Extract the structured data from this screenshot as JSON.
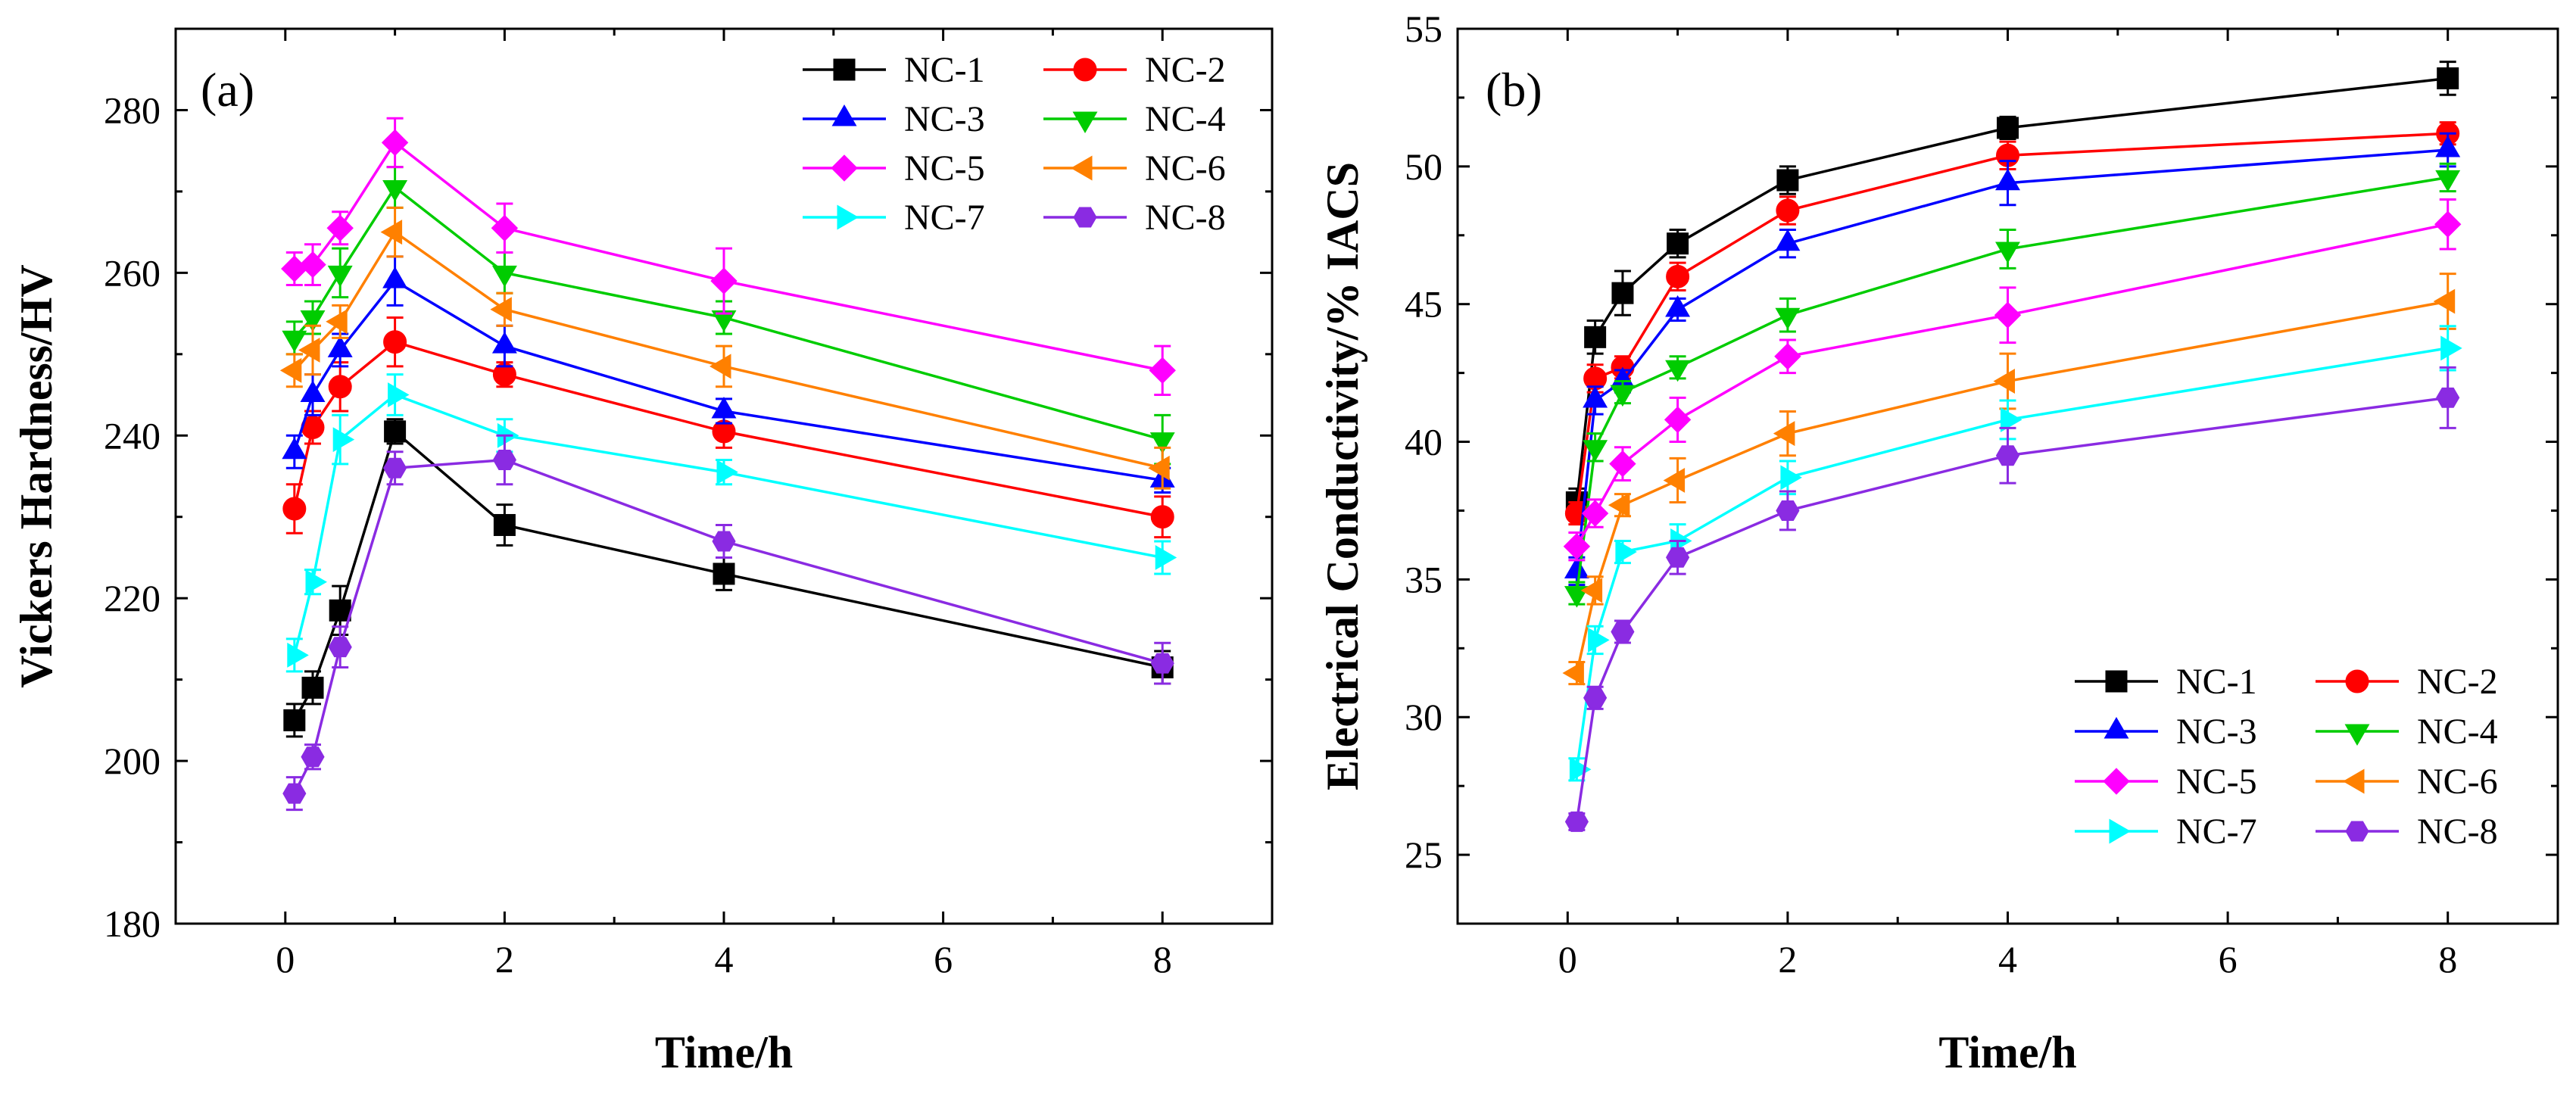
{
  "chart_data": [
    {
      "type": "line",
      "panel_label": "(a)",
      "xlabel": "Time/h",
      "ylabel": "Vickers Hardness/HV",
      "xlim": [
        -1,
        9
      ],
      "ylim": [
        180,
        290
      ],
      "xticks": [
        0,
        2,
        4,
        6,
        8
      ],
      "yticks": [
        180,
        200,
        220,
        240,
        260,
        280
      ],
      "legend_position": "top-right",
      "legend_columns": 2,
      "x": [
        0.083,
        0.25,
        0.5,
        1,
        2,
        4,
        8
      ],
      "series": [
        {
          "name": "NC-1",
          "color": "#000000",
          "marker": "square",
          "values": [
            205,
            209,
            218.5,
            240.5,
            229,
            223,
            211.5
          ],
          "errors": [
            2,
            2,
            3,
            1.5,
            2.5,
            2,
            2
          ]
        },
        {
          "name": "NC-2",
          "color": "#ff0000",
          "marker": "circle",
          "values": [
            231,
            241,
            246,
            251.5,
            247.5,
            240.5,
            230
          ],
          "errors": [
            3,
            2,
            3,
            3,
            1.5,
            2,
            2.5
          ]
        },
        {
          "name": "NC-3",
          "color": "#0000ff",
          "marker": "triangle-up",
          "values": [
            238,
            245,
            250.5,
            259,
            251,
            243,
            234.5
          ],
          "errors": [
            2,
            2.5,
            2,
            3,
            2.5,
            1.5,
            1.5
          ]
        },
        {
          "name": "NC-4",
          "color": "#00cc00",
          "marker": "triangle-down",
          "values": [
            252,
            254.5,
            260,
            270.5,
            260,
            254.5,
            239.5
          ],
          "errors": [
            2,
            2,
            3,
            2.5,
            2.5,
            2,
            3
          ]
        },
        {
          "name": "NC-5",
          "color": "#ff00ff",
          "marker": "diamond",
          "values": [
            260.5,
            261,
            265.5,
            276,
            265.5,
            259,
            248
          ],
          "errors": [
            2,
            2.5,
            2,
            3,
            3,
            4,
            3
          ]
        },
        {
          "name": "NC-6",
          "color": "#ff8000",
          "marker": "triangle-left",
          "values": [
            248,
            250.5,
            254,
            265,
            255.5,
            248.5,
            236
          ],
          "errors": [
            2,
            3,
            2,
            3,
            2,
            2.5,
            2.5
          ]
        },
        {
          "name": "NC-7",
          "color": "#00ffff",
          "marker": "triangle-right",
          "values": [
            213,
            222,
            239.5,
            245,
            240,
            235.5,
            225
          ],
          "errors": [
            2,
            1.5,
            3,
            2.5,
            2,
            1.5,
            2
          ]
        },
        {
          "name": "NC-8",
          "color": "#8a2be2",
          "marker": "hexagon",
          "values": [
            196,
            200.5,
            214,
            236,
            237,
            227,
            212
          ],
          "errors": [
            2,
            1.5,
            2.5,
            2,
            3,
            2,
            2.5
          ]
        }
      ]
    },
    {
      "type": "line",
      "panel_label": "(b)",
      "xlabel": "Time/h",
      "ylabel": "Electrical Conductivity/% IACS",
      "xlim": [
        -1,
        9
      ],
      "ylim": [
        22.5,
        55
      ],
      "xticks": [
        0,
        2,
        4,
        6,
        8
      ],
      "yticks": [
        25,
        30,
        35,
        40,
        45,
        50,
        55
      ],
      "legend_position": "bottom-right",
      "legend_columns": 2,
      "x": [
        0.083,
        0.25,
        0.5,
        1,
        2,
        4,
        8
      ],
      "series": [
        {
          "name": "NC-1",
          "color": "#000000",
          "marker": "square",
          "values": [
            37.8,
            43.8,
            45.4,
            47.2,
            49.5,
            51.4,
            53.2
          ],
          "errors": [
            0.5,
            0.6,
            0.8,
            0.5,
            0.5,
            0.4,
            0.6
          ]
        },
        {
          "name": "NC-2",
          "color": "#ff0000",
          "marker": "circle",
          "values": [
            37.4,
            42.3,
            42.7,
            46,
            48.4,
            50.4,
            51.2
          ],
          "errors": [
            0.4,
            0.5,
            0.4,
            0.5,
            0.5,
            0.5,
            0.4
          ]
        },
        {
          "name": "NC-3",
          "color": "#0000ff",
          "marker": "triangle-up",
          "values": [
            35.3,
            41.5,
            42.2,
            44.8,
            47.2,
            49.4,
            50.6
          ],
          "errors": [
            0.5,
            0.5,
            0.4,
            0.4,
            0.5,
            0.8,
            0.6
          ]
        },
        {
          "name": "NC-4",
          "color": "#00cc00",
          "marker": "triangle-down",
          "values": [
            34.5,
            39.8,
            41.8,
            42.7,
            44.6,
            47,
            49.6
          ],
          "errors": [
            0.4,
            0.5,
            0.4,
            0.4,
            0.6,
            0.7,
            0.5
          ]
        },
        {
          "name": "NC-5",
          "color": "#ff00ff",
          "marker": "diamond",
          "values": [
            36.2,
            37.4,
            39.2,
            40.8,
            43.1,
            44.6,
            47.9
          ],
          "errors": [
            0.5,
            0.5,
            0.6,
            0.8,
            0.6,
            1.0,
            0.9
          ]
        },
        {
          "name": "NC-6",
          "color": "#ff8000",
          "marker": "triangle-left",
          "values": [
            31.6,
            34.6,
            37.7,
            38.6,
            40.3,
            42.2,
            45.1
          ],
          "errors": [
            0.4,
            0.5,
            0.4,
            0.8,
            0.8,
            1.0,
            1.0
          ]
        },
        {
          "name": "NC-7",
          "color": "#00ffff",
          "marker": "triangle-right",
          "values": [
            28.1,
            32.8,
            36,
            36.4,
            38.7,
            40.8,
            43.4
          ],
          "errors": [
            0.4,
            0.5,
            0.4,
            0.6,
            0.6,
            0.7,
            0.8
          ]
        },
        {
          "name": "NC-8",
          "color": "#8a2be2",
          "marker": "hexagon",
          "values": [
            26.2,
            30.7,
            33.1,
            35.8,
            37.5,
            39.5,
            41.6
          ],
          "errors": [
            0.3,
            0.4,
            0.4,
            0.6,
            0.7,
            1.0,
            1.1
          ]
        }
      ]
    }
  ]
}
